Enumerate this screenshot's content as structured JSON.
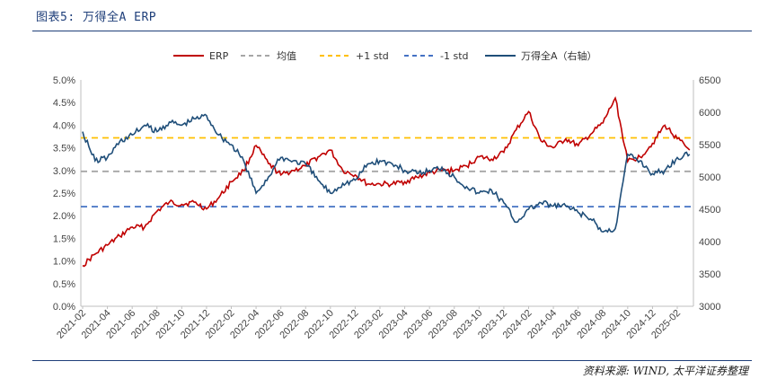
{
  "header": {
    "title": "图表5: 万得全A ERP"
  },
  "footer": {
    "source": "资料来源: WIND, 太平洋证券整理"
  },
  "colors": {
    "erp": "#c00000",
    "mean": "#a6a6a6",
    "plus1": "#ffc000",
    "minus1": "#4472c4",
    "index": "#1f4e79",
    "rule": "#1f3f7a"
  },
  "chart_data": {
    "type": "line",
    "title": "",
    "left_axis": {
      "ylim": [
        0.0,
        5.0
      ],
      "ticks": [
        "0.0%",
        "0.5%",
        "1.0%",
        "1.5%",
        "2.0%",
        "2.5%",
        "3.0%",
        "3.5%",
        "4.0%",
        "4.5%",
        "5.0%"
      ]
    },
    "right_axis": {
      "ylim": [
        3000,
        6500
      ],
      "ticks": [
        "3000",
        "3500",
        "4000",
        "4500",
        "5000",
        "5500",
        "6000",
        "6500"
      ]
    },
    "x_ticks": [
      "2021-02",
      "2021-04",
      "2021-06",
      "2021-08",
      "2021-10",
      "2021-12",
      "2022-02",
      "2022-04",
      "2022-06",
      "2022-08",
      "2022-10",
      "2022-12",
      "2023-02",
      "2023-04",
      "2023-06",
      "2023-08",
      "2023-10",
      "2023-12",
      "2024-02",
      "2024-04",
      "2024-06",
      "2024-08",
      "2024-10",
      "2024-12",
      "2025-02"
    ],
    "legend": {
      "placement": "top-center",
      "labels": [
        "ERP",
        "均值",
        "+1 std",
        "-1 std",
        "万得全A（右轴）"
      ]
    },
    "grid": false,
    "series": [
      {
        "name": "ERP",
        "axis": "left",
        "unit": "%",
        "x": [
          "2021-02",
          "2021-03",
          "2021-04",
          "2021-05",
          "2021-06",
          "2021-07",
          "2021-08",
          "2021-09",
          "2021-10",
          "2021-11",
          "2021-12",
          "2022-01",
          "2022-02",
          "2022-03",
          "2022-04",
          "2022-05",
          "2022-06",
          "2022-07",
          "2022-08",
          "2022-09",
          "2022-10",
          "2022-11",
          "2022-12",
          "2023-01",
          "2023-02",
          "2023-03",
          "2023-04",
          "2023-05",
          "2023-06",
          "2023-07",
          "2023-08",
          "2023-09",
          "2023-10",
          "2023-11",
          "2023-12",
          "2024-01",
          "2024-02",
          "2024-03",
          "2024-04",
          "2024-05",
          "2024-06",
          "2024-07",
          "2024-08",
          "2024-09",
          "2024-10",
          "2024-11",
          "2024-12",
          "2025-01",
          "2025-02",
          "2025-03"
        ],
        "values": [
          0.9,
          1.15,
          1.35,
          1.55,
          1.75,
          1.75,
          2.1,
          2.3,
          2.25,
          2.3,
          2.15,
          2.4,
          2.75,
          3.0,
          3.55,
          3.15,
          2.9,
          3.0,
          3.1,
          3.3,
          3.45,
          3.0,
          2.9,
          2.7,
          2.7,
          2.7,
          2.75,
          2.85,
          2.95,
          3.0,
          3.0,
          3.1,
          3.3,
          3.25,
          3.4,
          3.9,
          4.3,
          3.65,
          3.5,
          3.7,
          3.55,
          3.8,
          4.05,
          4.6,
          3.2,
          3.3,
          3.6,
          4.0,
          3.7,
          3.45
        ]
      },
      {
        "name": "均值",
        "axis": "left",
        "unit": "%",
        "values": [
          2.98
        ]
      },
      {
        "name": "+1 std",
        "axis": "left",
        "unit": "%",
        "values": [
          3.72
        ]
      },
      {
        "name": "-1 std",
        "axis": "left",
        "unit": "%",
        "values": [
          2.2
        ]
      },
      {
        "name": "万得全A（右轴）",
        "axis": "right",
        "x": [
          "2021-02",
          "2021-03",
          "2021-04",
          "2021-05",
          "2021-06",
          "2021-07",
          "2021-08",
          "2021-09",
          "2021-10",
          "2021-11",
          "2021-12",
          "2022-01",
          "2022-02",
          "2022-03",
          "2022-04",
          "2022-05",
          "2022-06",
          "2022-07",
          "2022-08",
          "2022-09",
          "2022-10",
          "2022-11",
          "2022-12",
          "2023-01",
          "2023-02",
          "2023-03",
          "2023-04",
          "2023-05",
          "2023-06",
          "2023-07",
          "2023-08",
          "2023-09",
          "2023-10",
          "2023-11",
          "2023-12",
          "2024-01",
          "2024-02",
          "2024-03",
          "2024-04",
          "2024-05",
          "2024-06",
          "2024-07",
          "2024-08",
          "2024-09",
          "2024-10",
          "2024-11",
          "2024-12",
          "2025-01",
          "2025-02",
          "2025-03"
        ],
        "values": [
          5700,
          5250,
          5300,
          5550,
          5650,
          5800,
          5700,
          5850,
          5800,
          5900,
          5950,
          5650,
          5500,
          5250,
          4750,
          5000,
          5300,
          5250,
          5200,
          4950,
          4750,
          4900,
          4950,
          5200,
          5250,
          5200,
          5100,
          5050,
          5100,
          5150,
          5000,
          4850,
          4750,
          4800,
          4600,
          4300,
          4500,
          4600,
          4550,
          4550,
          4450,
          4350,
          4150,
          4200,
          5350,
          5250,
          5050,
          5100,
          5300,
          5350
        ]
      }
    ]
  }
}
